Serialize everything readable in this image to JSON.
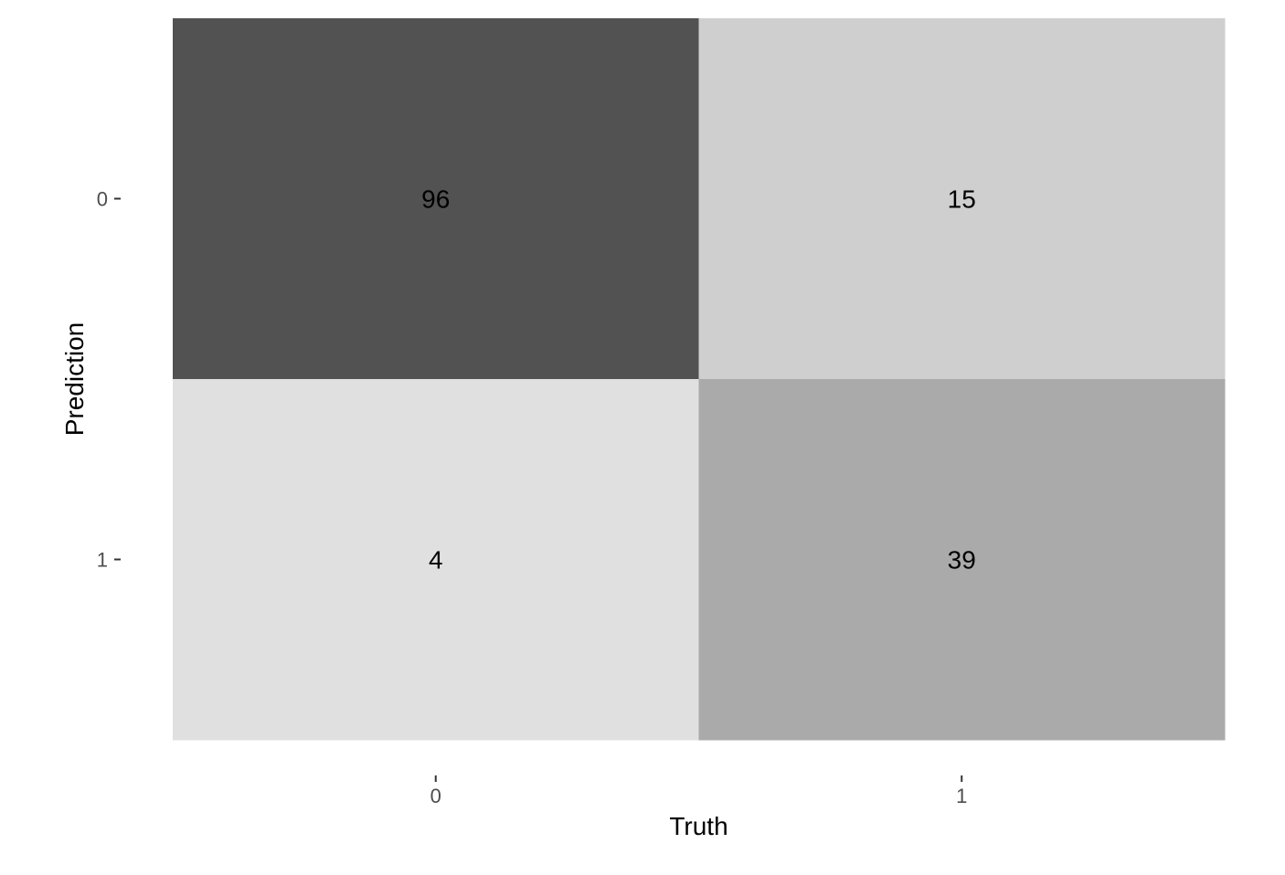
{
  "chart_data": {
    "type": "heatmap",
    "title": "",
    "xlabel": "Truth",
    "ylabel": "Prediction",
    "x_categories": [
      "0",
      "1"
    ],
    "y_categories": [
      "0",
      "1"
    ],
    "cells": [
      {
        "truth": "0",
        "prediction": "0",
        "value": 96
      },
      {
        "truth": "1",
        "prediction": "0",
        "value": 15
      },
      {
        "truth": "0",
        "prediction": "1",
        "value": 4
      },
      {
        "truth": "1",
        "prediction": "1",
        "value": 39
      }
    ],
    "fill_scale": {
      "low": "#e0e0e0",
      "high": "#525252"
    },
    "grid": false,
    "legend": "none"
  }
}
